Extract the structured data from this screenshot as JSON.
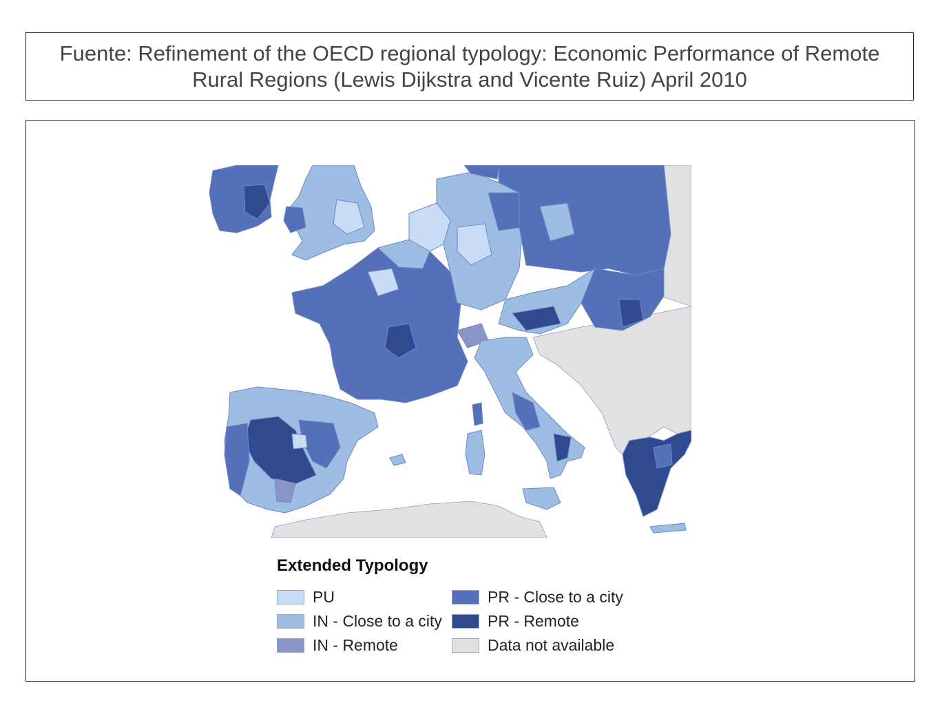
{
  "caption": {
    "text": "Fuente: Refinement of the OECD regional typology: Economic Performance of Remote Rural Regions (Lewis Dijkstra and Vicente Ruiz) April 2010"
  },
  "legend": {
    "title": "Extended Typology",
    "items": [
      {
        "label": "PU",
        "color": "#c9dcf6"
      },
      {
        "label": "IN - Close to a city",
        "color": "#9dbde2"
      },
      {
        "label": "IN - Remote",
        "color": "#8895c6"
      },
      {
        "label": "PR - Close to a city",
        "color": "#5470b9"
      },
      {
        "label": "PR - Remote",
        "color": "#2f4a8e"
      },
      {
        "label": "Data not available",
        "color": "#e1e1e1"
      }
    ]
  },
  "map": {
    "sea_color": "#ffffff",
    "border_color": "#6f86c6"
  }
}
